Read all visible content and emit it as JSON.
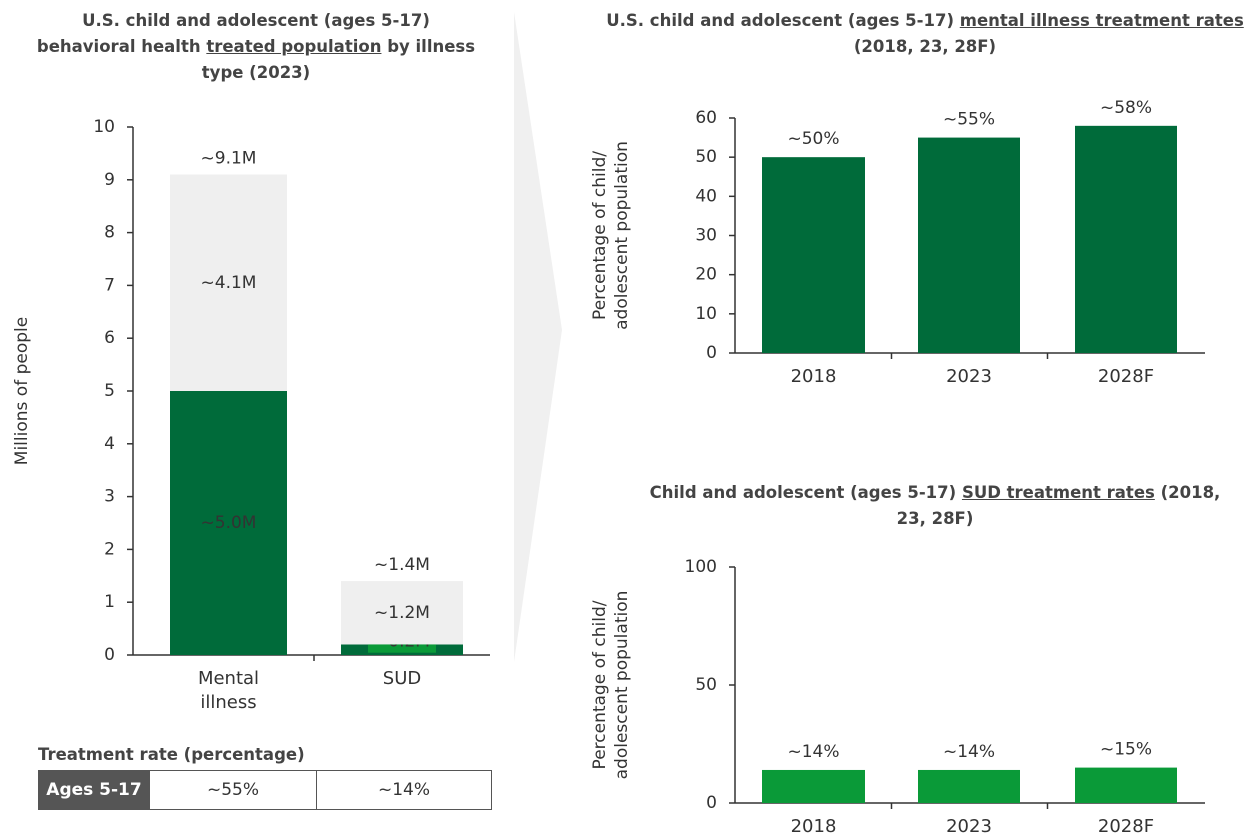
{
  "chart_data": [
    {
      "type": "bar",
      "title": [
        "U.S. child and adolescent (ages 5-17) behavioral health ",
        "treated population",
        " by illness type (2023)"
      ],
      "ylabel": "Millions of people",
      "categories": [
        "Mental illness",
        "SUD"
      ],
      "series": [
        {
          "color": "#006b3a",
          "values": [
            5.0,
            0.2
          ],
          "value_labels": [
            "~5.0M",
            "~0.2M"
          ]
        },
        {
          "color": "#efefef",
          "values": [
            4.1,
            1.2
          ],
          "value_labels": [
            "~4.1M",
            "~1.2M"
          ]
        }
      ],
      "totals": [
        9.1,
        1.4
      ],
      "total_labels": [
        "~9.1M",
        "~1.4M"
      ],
      "ylim": [
        0,
        10
      ],
      "yticks": [
        0,
        1,
        2,
        3,
        4,
        5,
        6,
        7,
        8,
        9,
        10
      ]
    },
    {
      "type": "bar",
      "title": [
        "U.S. child and adolescent (ages 5-17) ",
        "mental illness treatment rates",
        " (2018, 23, 28F)"
      ],
      "ylabel": [
        "Percentage of child/",
        "adolescent population"
      ],
      "categories": [
        "2018",
        "2023",
        "2028F"
      ],
      "values": [
        50,
        55,
        58
      ],
      "value_labels": [
        "~50%",
        "~55%",
        "~58%"
      ],
      "color": "#006b3a",
      "ylim": [
        0,
        60
      ],
      "yticks": [
        0,
        10,
        20,
        30,
        40,
        50,
        60
      ]
    },
    {
      "type": "bar",
      "title": [
        "Child and adolescent (ages 5-17) ",
        "SUD treatment rates",
        " (2018, 23, 28F)"
      ],
      "ylabel": [
        "Percentage of child/",
        "adolescent population"
      ],
      "categories": [
        "2018",
        "2023",
        "2028F"
      ],
      "values": [
        14,
        14,
        15
      ],
      "value_labels": [
        "~14%",
        "~14%",
        "~15%"
      ],
      "color": "#0a9a38",
      "ylim": [
        0,
        100
      ],
      "yticks": [
        0,
        50,
        100
      ]
    }
  ],
  "table": {
    "title": "Treatment rate (percentage)",
    "rows": [
      [
        "Ages 5-17",
        "~55%",
        "~14%"
      ]
    ]
  }
}
